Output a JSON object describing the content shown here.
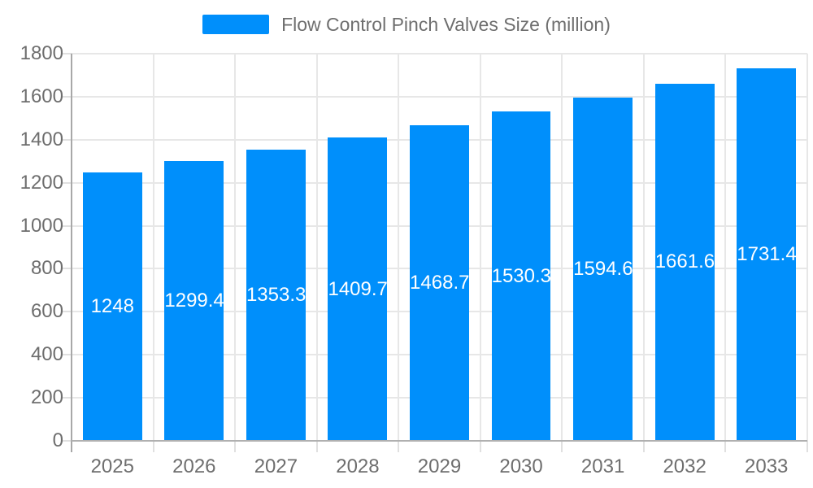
{
  "chart_data": {
    "type": "bar",
    "title": "Flow Control Pinch Valves Size (million)",
    "categories": [
      "2025",
      "2026",
      "2027",
      "2028",
      "2029",
      "2030",
      "2031",
      "2032",
      "2033"
    ],
    "values": [
      1248,
      1299.4,
      1353.3,
      1409.7,
      1468.7,
      1530.3,
      1594.6,
      1661.6,
      1731.4
    ],
    "value_labels": [
      "1248",
      "1299.4",
      "1353.3",
      "1409.7",
      "1468.7",
      "1530.3",
      "1594.6",
      "1661.6",
      "1731.4"
    ],
    "xlabel": "",
    "ylabel": "",
    "ylim": [
      0,
      1800
    ],
    "ytick_step": 200,
    "ytick_labels": [
      "0",
      "200",
      "400",
      "600",
      "800",
      "1000",
      "1200",
      "1400",
      "1600",
      "1800"
    ],
    "grid": true,
    "legend_position": "top",
    "colors": {
      "bar": "#008FFB",
      "bar_label": "#ffffff",
      "axis_text": "#6e6e6e",
      "legend_text": "#6e6e6e",
      "gridline": "#e7e7e7",
      "tick": "#e0e0e0",
      "y_axis_line": "#a8a8a8",
      "x_axis_line": "#b0b0b0",
      "background": "#ffffff"
    }
  }
}
